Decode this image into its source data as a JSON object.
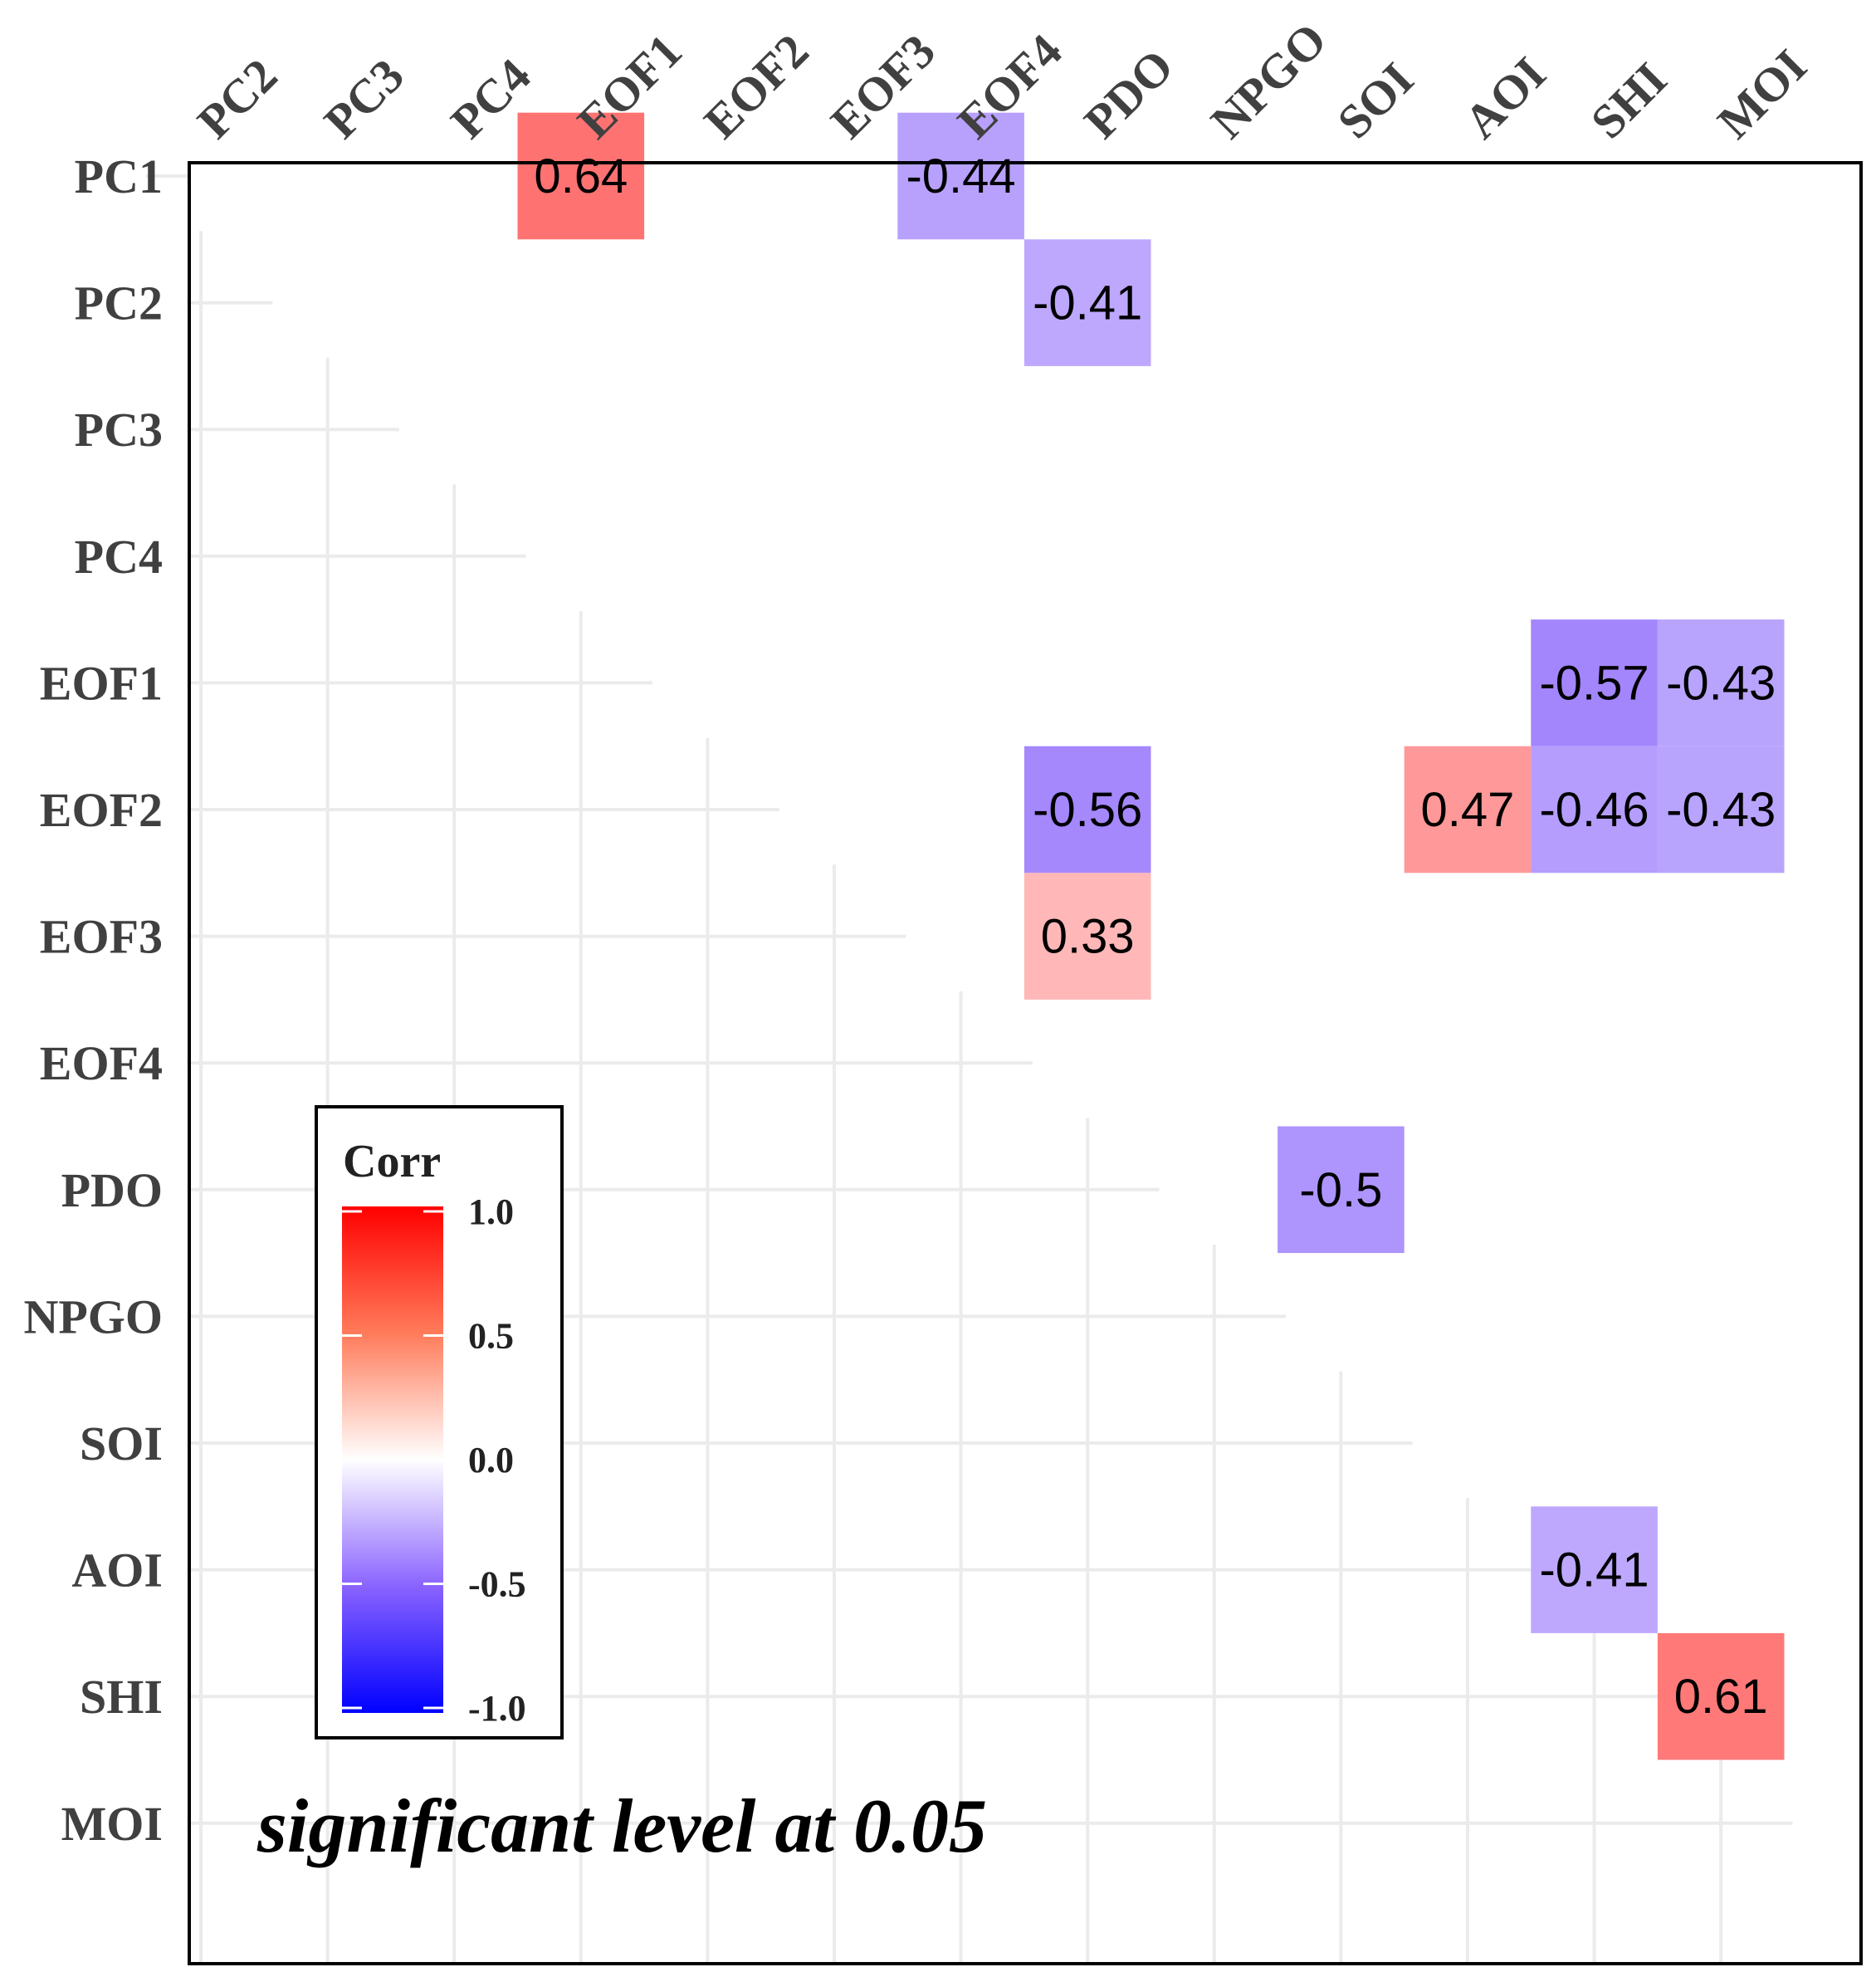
{
  "chart_data": {
    "type": "heatmap",
    "title": "",
    "x_labels": [
      "PC2",
      "PC3",
      "PC4",
      "EOF1",
      "EOF2",
      "EOF3",
      "EOF4",
      "PDO",
      "NPGO",
      "SOI",
      "AOI",
      "SHI",
      "MOI"
    ],
    "y_labels": [
      "PC1",
      "PC2",
      "PC3",
      "PC4",
      "EOF1",
      "EOF2",
      "EOF3",
      "EOF4",
      "PDO",
      "NPGO",
      "SOI",
      "AOI",
      "SHI",
      "MOI"
    ],
    "cells": [
      {
        "row": "PC1",
        "col": "EOF1",
        "value": 0.64,
        "label": "0.64"
      },
      {
        "row": "PC1",
        "col": "EOF4",
        "value": -0.44,
        "label": "-0.44"
      },
      {
        "row": "PC2",
        "col": "PDO",
        "value": -0.41,
        "label": "-0.41"
      },
      {
        "row": "EOF1",
        "col": "SHI",
        "value": -0.57,
        "label": "-0.57"
      },
      {
        "row": "EOF1",
        "col": "MOI",
        "value": -0.43,
        "label": "-0.43"
      },
      {
        "row": "EOF2",
        "col": "PDO",
        "value": -0.56,
        "label": "-0.56"
      },
      {
        "row": "EOF2",
        "col": "AOI",
        "value": 0.47,
        "label": "0.47"
      },
      {
        "row": "EOF2",
        "col": "SHI",
        "value": -0.46,
        "label": "-0.46"
      },
      {
        "row": "EOF2",
        "col": "MOI",
        "value": -0.43,
        "label": "-0.43"
      },
      {
        "row": "EOF3",
        "col": "PDO",
        "value": 0.33,
        "label": "0.33"
      },
      {
        "row": "PDO",
        "col": "SOI",
        "value": -0.5,
        "label": "-0.5"
      },
      {
        "row": "AOI",
        "col": "SHI",
        "value": -0.41,
        "label": "-0.41"
      },
      {
        "row": "SHI",
        "col": "MOI",
        "value": 0.61,
        "label": "0.61"
      }
    ],
    "legend": {
      "title": "Corr",
      "ticks": [
        "1.0",
        "0.5",
        "0.0",
        "-0.5",
        "-1.0"
      ],
      "range": [
        -1.0,
        1.0
      ],
      "colors": {
        "low": "#0000ff",
        "mid": "#ffffff",
        "high": "#ff0000"
      },
      "placement": "bottom-left"
    },
    "annotation": "significant level at 0.05",
    "grid": true
  }
}
